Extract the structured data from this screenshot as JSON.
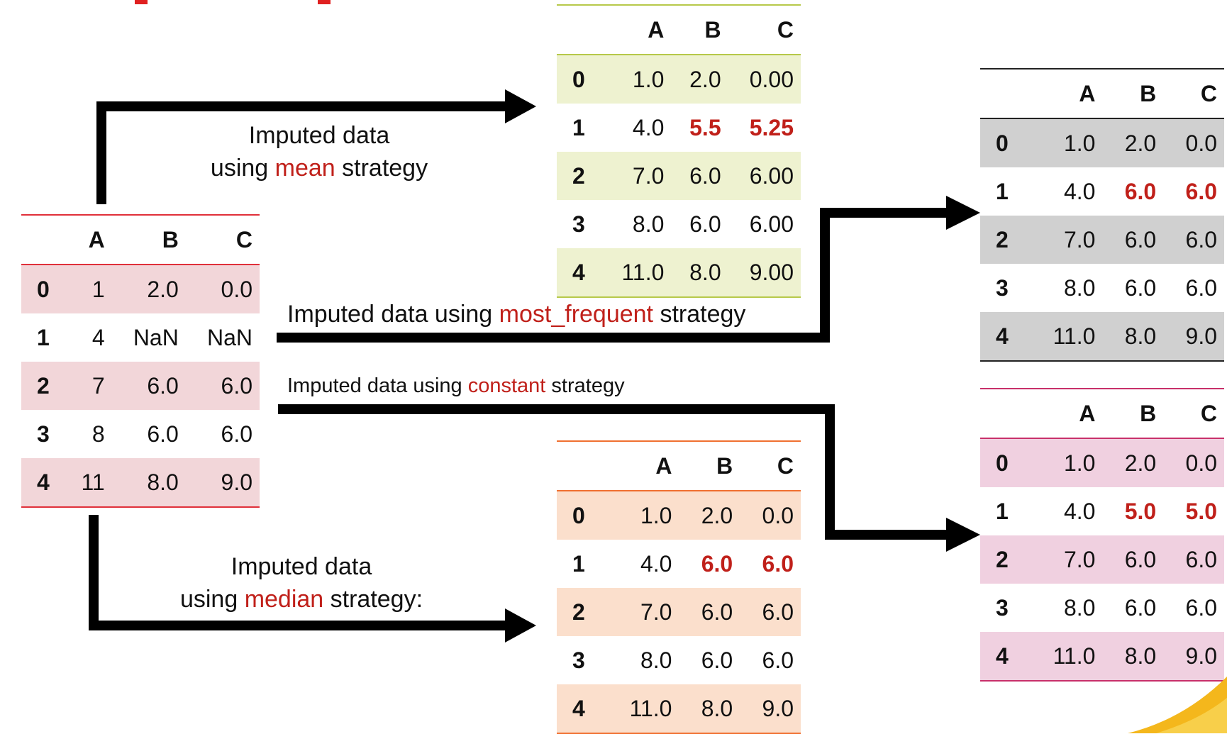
{
  "columns": [
    "A",
    "B",
    "C"
  ],
  "index": [
    "0",
    "1",
    "2",
    "3",
    "4"
  ],
  "colors": {
    "accent_red": "#c0201a",
    "arrow": "#000000",
    "orig_line": "#e0303a",
    "orig_band": "#f2d6d9",
    "mean_line": "#b7c94a",
    "mean_band": "#eef2d0",
    "freq_line": "#222222",
    "freq_band": "#d0d0d0",
    "const_line": "#c8306a",
    "const_band": "#f0d0e0",
    "median_line": "#f07030",
    "median_band": "#fbdfcc"
  },
  "tables": {
    "original": [
      [
        "1",
        "2.0",
        "0.0"
      ],
      [
        "4",
        "NaN",
        "NaN"
      ],
      [
        "7",
        "6.0",
        "6.0"
      ],
      [
        "8",
        "6.0",
        "6.0"
      ],
      [
        "11",
        "8.0",
        "9.0"
      ]
    ],
    "mean": [
      [
        "1.0",
        "2.0",
        "0.00"
      ],
      [
        "4.0",
        "5.5",
        "5.25"
      ],
      [
        "7.0",
        "6.0",
        "6.00"
      ],
      [
        "8.0",
        "6.0",
        "6.00"
      ],
      [
        "11.0",
        "8.0",
        "9.00"
      ]
    ],
    "most_frequent": [
      [
        "1.0",
        "2.0",
        "0.0"
      ],
      [
        "4.0",
        "6.0",
        "6.0"
      ],
      [
        "7.0",
        "6.0",
        "6.0"
      ],
      [
        "8.0",
        "6.0",
        "6.0"
      ],
      [
        "11.0",
        "8.0",
        "9.0"
      ]
    ],
    "constant": [
      [
        "1.0",
        "2.0",
        "0.0"
      ],
      [
        "4.0",
        "5.0",
        "5.0"
      ],
      [
        "7.0",
        "6.0",
        "6.0"
      ],
      [
        "8.0",
        "6.0",
        "6.0"
      ],
      [
        "11.0",
        "8.0",
        "9.0"
      ]
    ],
    "median": [
      [
        "1.0",
        "2.0",
        "0.0"
      ],
      [
        "4.0",
        "6.0",
        "6.0"
      ],
      [
        "7.0",
        "6.0",
        "6.0"
      ],
      [
        "8.0",
        "6.0",
        "6.0"
      ],
      [
        "11.0",
        "8.0",
        "9.0"
      ]
    ]
  },
  "labels": {
    "mean": {
      "line1": "Imputed data",
      "prefix": "using ",
      "strategy": "mean",
      "suffix": " strategy"
    },
    "most_frequent": {
      "prefix": "Imputed data using ",
      "strategy": "most_frequent",
      "suffix": " strategy"
    },
    "constant": {
      "prefix": "Imputed data using ",
      "strategy": "constant",
      "suffix": " strategy"
    },
    "median": {
      "line1": "Imputed data",
      "prefix": "using ",
      "strategy": "median",
      "suffix": " strategy:"
    }
  }
}
